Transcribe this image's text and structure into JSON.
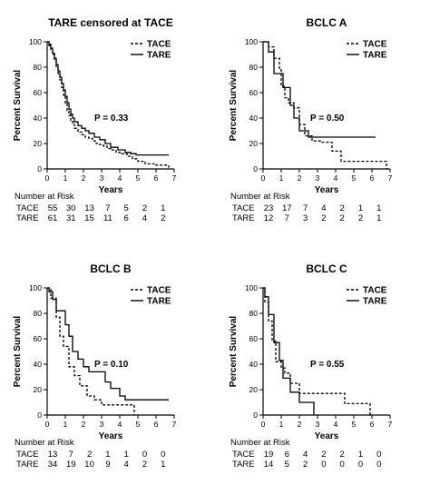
{
  "chart_data": [
    {
      "type": "line",
      "title": "TARE censored at TACE",
      "xlabel": "Years",
      "ylabel": "Percent Survival",
      "xlim": [
        0,
        7
      ],
      "ylim": [
        0,
        100
      ],
      "xticks": [
        "0",
        "1",
        "2",
        "3",
        "4",
        "5",
        "6",
        "7"
      ],
      "yticks": [
        "0",
        "20",
        "40",
        "60",
        "80",
        "100"
      ],
      "pvalue": "P = 0.33",
      "series": [
        {
          "name": "TACE",
          "style": "dashed",
          "x": [
            0,
            0.1,
            0.2,
            0.3,
            0.4,
            0.5,
            0.6,
            0.7,
            0.8,
            0.9,
            1.0,
            1.1,
            1.2,
            1.3,
            1.4,
            1.5,
            1.7,
            1.9,
            2.1,
            2.3,
            2.5,
            2.7,
            2.9,
            3.1,
            3.3,
            3.5,
            3.8,
            4.1,
            4.4,
            4.7,
            5.0,
            5.4,
            6.0,
            6.7
          ],
          "y": [
            100,
            97,
            94,
            90,
            85,
            80,
            75,
            70,
            64,
            58,
            52,
            46,
            42,
            38,
            35,
            32,
            29,
            27,
            25,
            24,
            22,
            20,
            19,
            18,
            16,
            15,
            13,
            12,
            10,
            8,
            6,
            4,
            3,
            1
          ]
        },
        {
          "name": "TARE",
          "style": "solid",
          "x": [
            0,
            0.1,
            0.2,
            0.3,
            0.4,
            0.5,
            0.6,
            0.7,
            0.8,
            0.9,
            1.0,
            1.1,
            1.2,
            1.3,
            1.4,
            1.5,
            1.7,
            1.9,
            2.1,
            2.3,
            2.6,
            2.9,
            3.2,
            3.5,
            3.9,
            4.3,
            4.6,
            4.9,
            6.7
          ],
          "y": [
            100,
            98,
            95,
            91,
            87,
            82,
            77,
            72,
            67,
            62,
            57,
            52,
            47,
            43,
            40,
            37,
            34,
            32,
            30,
            28,
            25,
            23,
            20,
            17,
            15,
            13,
            12,
            11,
            11
          ]
        }
      ],
      "risk_table": {
        "header": "Number at Risk",
        "rows": [
          {
            "label": "TACE",
            "values": [
              "55",
              "30",
              "13",
              "7",
              "5",
              "2",
              "1"
            ]
          },
          {
            "label": "TARE",
            "values": [
              "61",
              "31",
              "15",
              "11",
              "6",
              "4",
              "2"
            ]
          }
        ]
      }
    },
    {
      "type": "line",
      "title": "BCLC A",
      "xlabel": "Years",
      "ylabel": "Percent Survival",
      "xlim": [
        0,
        7
      ],
      "ylim": [
        0,
        100
      ],
      "xticks": [
        "0",
        "1",
        "2",
        "3",
        "4",
        "5",
        "6",
        "7"
      ],
      "yticks": [
        "0",
        "20",
        "40",
        "60",
        "80",
        "100"
      ],
      "pvalue": "P = 0.50",
      "series": [
        {
          "name": "TACE",
          "style": "dashed",
          "x": [
            0,
            0.3,
            0.6,
            0.9,
            1.0,
            1.2,
            1.4,
            1.7,
            2.0,
            2.3,
            2.7,
            3.2,
            3.8,
            4.3,
            6.5,
            6.8
          ],
          "y": [
            100,
            96,
            87,
            78,
            65,
            56,
            52,
            48,
            35,
            26,
            22,
            21,
            14,
            6,
            6,
            0
          ]
        },
        {
          "name": "TARE",
          "style": "solid",
          "x": [
            0,
            0.3,
            0.6,
            1.1,
            1.5,
            1.7,
            2.0,
            2.5,
            6.2
          ],
          "y": [
            100,
            92,
            75,
            64,
            50,
            40,
            30,
            25,
            25
          ]
        }
      ],
      "risk_table": {
        "header": "Number at Risk",
        "rows": [
          {
            "label": "TACE",
            "values": [
              "23",
              "17",
              "7",
              "4",
              "2",
              "1",
              "1"
            ]
          },
          {
            "label": "TARE",
            "values": [
              "12",
              "7",
              "3",
              "2",
              "2",
              "2",
              "1"
            ]
          }
        ]
      }
    },
    {
      "type": "line",
      "title": "BCLC B",
      "xlabel": "Years",
      "ylabel": "Percent Survival",
      "xlim": [
        0,
        7
      ],
      "ylim": [
        0,
        100
      ],
      "xticks": [
        "0",
        "1",
        "2",
        "3",
        "4",
        "5",
        "6",
        "7"
      ],
      "yticks": [
        "0",
        "20",
        "40",
        "60",
        "80",
        "100"
      ],
      "pvalue": "P = 0.10",
      "series": [
        {
          "name": "TACE",
          "style": "dashed",
          "x": [
            0,
            0.2,
            0.5,
            0.7,
            0.9,
            1.2,
            1.5,
            1.8,
            2.2,
            2.6,
            3.0,
            4.6,
            4.8
          ],
          "y": [
            100,
            92,
            77,
            62,
            54,
            38,
            31,
            23,
            15,
            12,
            8,
            8,
            0
          ]
        },
        {
          "name": "TARE",
          "style": "solid",
          "x": [
            0,
            0.1,
            0.3,
            0.5,
            0.8,
            1.0,
            1.2,
            1.4,
            1.7,
            2.0,
            2.3,
            2.9,
            3.2,
            3.5,
            4.0,
            4.3,
            6.7
          ],
          "y": [
            100,
            97,
            91,
            82,
            82,
            71,
            62,
            50,
            44,
            38,
            34,
            34,
            26,
            21,
            15,
            12,
            12
          ]
        }
      ],
      "risk_table": {
        "header": "Number at Risk",
        "rows": [
          {
            "label": "TACE",
            "values": [
              "13",
              "7",
              "2",
              "1",
              "1",
              "0",
              "0"
            ]
          },
          {
            "label": "TARE",
            "values": [
              "34",
              "19",
              "10",
              "9",
              "4",
              "2",
              "1"
            ]
          }
        ]
      }
    },
    {
      "type": "line",
      "title": "BCLC C",
      "xlabel": "Years",
      "ylabel": "Percent Survival",
      "xlim": [
        0,
        7
      ],
      "ylim": [
        0,
        100
      ],
      "xticks": [
        "0",
        "1",
        "2",
        "3",
        "4",
        "5",
        "6",
        "7"
      ],
      "yticks": [
        "0",
        "20",
        "40",
        "60",
        "80",
        "100"
      ],
      "pvalue": "P = 0.55",
      "series": [
        {
          "name": "TACE",
          "style": "dashed",
          "x": [
            0,
            0.1,
            0.3,
            0.5,
            0.7,
            1.0,
            1.2,
            1.5,
            2.0,
            4.5,
            5.8,
            5.9
          ],
          "y": [
            100,
            89,
            74,
            58,
            42,
            37,
            33,
            25,
            17,
            9,
            9,
            0
          ]
        },
        {
          "name": "TARE",
          "style": "solid",
          "x": [
            0,
            0.1,
            0.3,
            0.6,
            0.9,
            1.1,
            1.5,
            2.0,
            2.7,
            2.8
          ],
          "y": [
            100,
            93,
            79,
            57,
            43,
            29,
            18,
            10,
            10,
            0
          ]
        }
      ],
      "risk_table": {
        "header": "Number at Risk",
        "rows": [
          {
            "label": "TACE",
            "values": [
              "19",
              "6",
              "4",
              "2",
              "2",
              "1",
              "0"
            ]
          },
          {
            "label": "TARE",
            "values": [
              "14",
              "5",
              "2",
              "0",
              "0",
              "0",
              "0"
            ]
          }
        ]
      }
    }
  ]
}
